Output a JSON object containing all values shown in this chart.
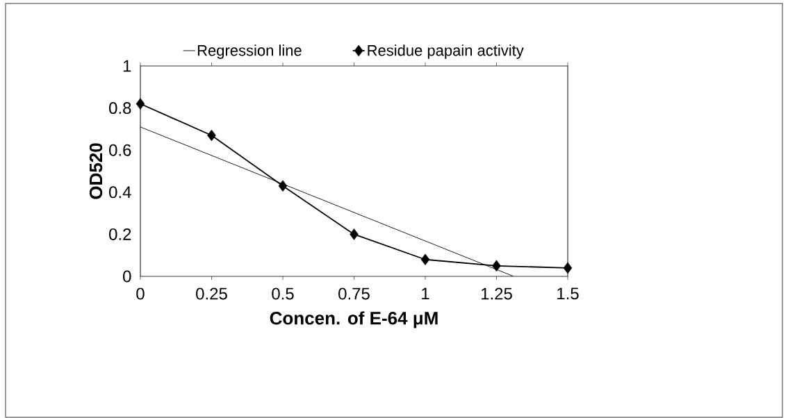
{
  "chart_data": {
    "type": "line",
    "xlabel": "Concen. of E-64 μM",
    "ylabel": "OD520",
    "xlim": [
      0,
      1.5
    ],
    "xticks": [
      0,
      0.25,
      0.5,
      0.75,
      1,
      1.25,
      1.5
    ],
    "ylim": [
      0,
      1
    ],
    "yticks": [
      0,
      0.2,
      0.4,
      0.6,
      0.8,
      1
    ],
    "legend": "top",
    "series": [
      {
        "name": "Regression line",
        "color": "#000000",
        "x": [
          0,
          1.31
        ],
        "values": [
          0.71,
          0
        ],
        "marker": "none"
      },
      {
        "name": "Residue papain activity",
        "color": "#000000",
        "x": [
          0,
          0.25,
          0.5,
          0.75,
          1,
          1.25,
          1.5
        ],
        "values": [
          0.82,
          0.67,
          0.43,
          0.2,
          0.08,
          0.05,
          0.04
        ],
        "marker": "diamond"
      }
    ]
  }
}
